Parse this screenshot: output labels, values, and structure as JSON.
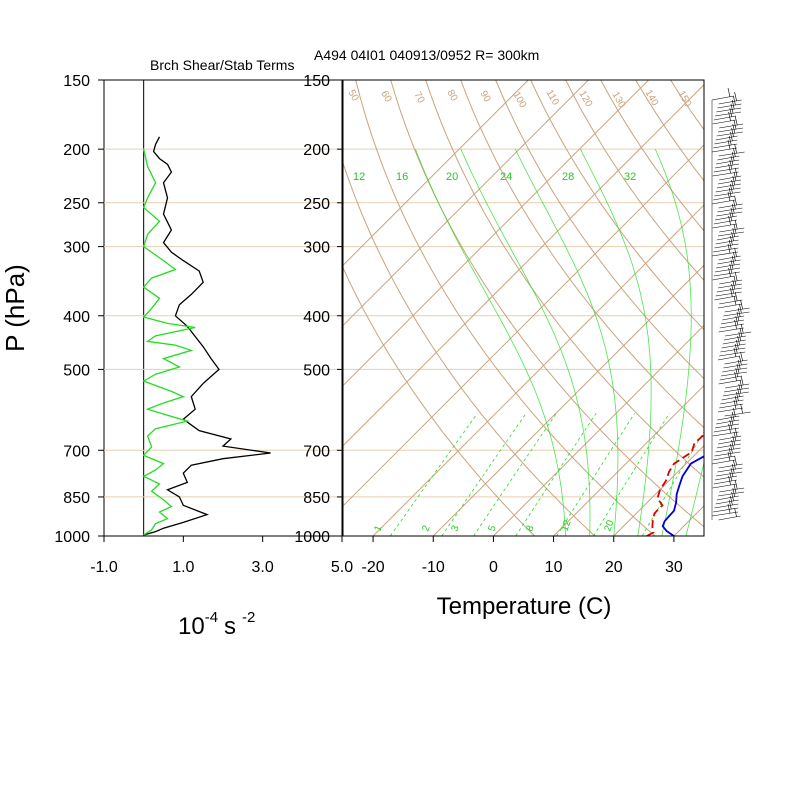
{
  "chart_data": [
    {
      "type": "line",
      "title": "Brch Shear/Stab Terms",
      "ylabel": "P (hPa)",
      "xlabel_base": "10",
      "xlabel_exp": "-4",
      "xlabel_unit": "s",
      "xlabel_unit_exp": "-2",
      "ylim": [
        1000,
        150
      ],
      "xlim": [
        -1.0,
        5.0
      ],
      "pressure_ticks": [
        150,
        200,
        250,
        300,
        400,
        500,
        700,
        850,
        1000
      ],
      "x_ticks": [
        "-1.0",
        "1.0",
        "3.0",
        "5.0"
      ],
      "x_tick_values": [
        -1,
        1,
        3,
        5
      ],
      "series": [
        {
          "color": "#000000",
          "points": [
            [
              0.4,
              190
            ],
            [
              0.3,
              196
            ],
            [
              0.25,
              202
            ],
            [
              0.4,
              208
            ],
            [
              0.6,
              213
            ],
            [
              0.7,
              220
            ],
            [
              0.5,
              230
            ],
            [
              0.6,
              245
            ],
            [
              0.5,
              262
            ],
            [
              0.7,
              280
            ],
            [
              0.5,
              295
            ],
            [
              0.7,
              307
            ],
            [
              1.0,
              318
            ],
            [
              1.4,
              332
            ],
            [
              1.5,
              348
            ],
            [
              1.2,
              366
            ],
            [
              0.9,
              382
            ],
            [
              0.8,
              400
            ],
            [
              1.1,
              418
            ],
            [
              1.3,
              436
            ],
            [
              1.5,
              455
            ],
            [
              1.7,
              478
            ],
            [
              1.9,
              500
            ],
            [
              1.5,
              530
            ],
            [
              1.2,
              560
            ],
            [
              1.3,
              590
            ],
            [
              1.0,
              615
            ],
            [
              1.4,
              645
            ],
            [
              2.2,
              668
            ],
            [
              2.0,
              688
            ],
            [
              3.2,
              708
            ],
            [
              2.0,
              725
            ],
            [
              1.2,
              745
            ],
            [
              1.0,
              770
            ],
            [
              1.1,
              800
            ],
            [
              0.6,
              825
            ],
            [
              0.9,
              850
            ],
            [
              1.0,
              880
            ],
            [
              1.6,
              915
            ],
            [
              1.0,
              945
            ],
            [
              0.5,
              968
            ],
            [
              0.3,
              982
            ],
            [
              0,
              996
            ]
          ]
        },
        {
          "color": "#22dd22",
          "points": [
            [
              0,
              200
            ],
            [
              0.1,
              215
            ],
            [
              0.3,
              230
            ],
            [
              0.1,
              245
            ],
            [
              0,
              255
            ],
            [
              0.4,
              270
            ],
            [
              0.1,
              285
            ],
            [
              0,
              300
            ],
            [
              0.5,
              318
            ],
            [
              0.8,
              330
            ],
            [
              0.2,
              342
            ],
            [
              0,
              355
            ],
            [
              0.4,
              372
            ],
            [
              0.2,
              388
            ],
            [
              0,
              402
            ],
            [
              0.6,
              413
            ],
            [
              1.3,
              420
            ],
            [
              0.3,
              435
            ],
            [
              0.1,
              445
            ],
            [
              0.8,
              452
            ],
            [
              1.2,
              462
            ],
            [
              0.5,
              478
            ],
            [
              0.9,
              495
            ],
            [
              0.3,
              510
            ],
            [
              0,
              525
            ],
            [
              0.7,
              548
            ],
            [
              1.0,
              560
            ],
            [
              0.5,
              575
            ],
            [
              0.1,
              590
            ],
            [
              0.6,
              605
            ],
            [
              1.1,
              620
            ],
            [
              0.3,
              640
            ],
            [
              0.1,
              660
            ],
            [
              0.2,
              690
            ],
            [
              0,
              715
            ],
            [
              0.5,
              740
            ],
            [
              0.3,
              760
            ],
            [
              0,
              780
            ],
            [
              0.4,
              805
            ],
            [
              0.2,
              830
            ],
            [
              0.5,
              860
            ],
            [
              0.7,
              885
            ],
            [
              0.4,
              905
            ],
            [
              0.6,
              930
            ],
            [
              0.3,
              950
            ],
            [
              0.2,
              975
            ],
            [
              0,
              996
            ]
          ]
        }
      ]
    },
    {
      "type": "line",
      "title": "A494 04I01 040913/0952 R= 300km",
      "xlabel": "Temperature (C)",
      "ylim": [
        1000,
        150
      ],
      "xlim": [
        -25,
        35
      ],
      "pressure_ticks": [
        150,
        200,
        250,
        300,
        400,
        500,
        700,
        850,
        1000
      ],
      "x_ticks": [
        -20,
        -10,
        0,
        10,
        20,
        30
      ],
      "isotherms": [
        -70,
        -60,
        -50,
        -40,
        -30,
        -20,
        -10,
        0,
        10,
        20,
        30
      ],
      "dry_adiabats_K": [
        280,
        290,
        300,
        310,
        320,
        330,
        340,
        350,
        360,
        370,
        380,
        390,
        400,
        410,
        420,
        430,
        440,
        450,
        460
      ],
      "moist_adiabats_C": [
        12,
        16,
        20,
        24,
        28,
        32
      ],
      "mixing_ratios": [
        1,
        2,
        3,
        5,
        8,
        12,
        20
      ],
      "adiabat_labels_top": [
        "50",
        "60",
        "70",
        "80",
        "90",
        "100",
        "110",
        "120",
        "130",
        "140",
        "150"
      ],
      "moist_labels": [
        "12",
        "16",
        "20",
        "24",
        "28",
        "32"
      ],
      "mixing_labels": [
        "1",
        "2",
        "3",
        "5",
        "8",
        "12",
        "20"
      ],
      "colors": {
        "thermo": "#c8a47e",
        "moist": "#22dd22",
        "temperature": "#0000dd",
        "dewpoint": "#dd0000"
      },
      "series": [
        {
          "color": "#0000dd",
          "style": "solid",
          "points": [
            [
              30,
              1000
            ],
            [
              28,
              980
            ],
            [
              26.5,
              960
            ],
            [
              26,
              940
            ],
            [
              25.8,
              900
            ],
            [
              24.8,
              870
            ],
            [
              23.5,
              840
            ],
            [
              22.5,
              810
            ],
            [
              21.5,
              780
            ],
            [
              20.8,
              740
            ],
            [
              22,
              712
            ],
            [
              23.5,
              702
            ],
            [
              23,
              680
            ],
            [
              22,
              650
            ],
            [
              21,
              620
            ],
            [
              20,
              590
            ],
            [
              19.3,
              560
            ],
            [
              18.5,
              530
            ],
            [
              18.5,
              500
            ],
            [
              17.8,
              470
            ],
            [
              17,
              440
            ],
            [
              16,
              410
            ],
            [
              13.5,
              380
            ],
            [
              12,
              355
            ],
            [
              11.5,
              330
            ],
            [
              10.8,
              310
            ],
            [
              9.8,
              290
            ],
            [
              8.3,
              270
            ],
            [
              6.8,
              250
            ],
            [
              5.5,
              235
            ],
            [
              3.8,
              220
            ],
            [
              2,
              205
            ],
            [
              0.5,
              195
            ],
            [
              -1,
              185
            ],
            [
              -2,
              178
            ]
          ]
        },
        {
          "color": "#dd0000",
          "style": "dashed",
          "points": [
            [
              25.5,
              1000
            ],
            [
              26,
              985
            ],
            [
              25,
              965
            ],
            [
              24,
              940
            ],
            [
              23,
              910
            ],
            [
              23,
              880
            ],
            [
              21,
              855
            ],
            [
              20,
              825
            ],
            [
              19.5,
              795
            ],
            [
              18.5,
              765
            ],
            [
              18,
              740
            ],
            [
              19,
              705
            ],
            [
              18,
              680
            ],
            [
              18.2,
              650
            ],
            [
              18.5,
              620
            ],
            [
              18.2,
              595
            ],
            [
              17.5,
              565
            ],
            [
              15.5,
              540
            ],
            [
              13,
              520
            ],
            [
              12.5,
              500
            ],
            [
              14,
              470
            ],
            [
              13.5,
              450
            ],
            [
              7,
              430
            ],
            [
              4,
              420
            ],
            [
              1,
              410
            ],
            [
              0.5,
              392
            ],
            [
              2,
              382
            ],
            [
              6,
              372
            ],
            [
              10,
              362
            ],
            [
              10.5,
              345
            ],
            [
              8,
              330
            ],
            [
              4.5,
              320
            ],
            [
              3.5,
              312
            ],
            [
              4,
              305
            ],
            [
              3,
              295
            ],
            [
              1,
              285
            ],
            [
              -2.5,
              270
            ],
            [
              -3,
              255
            ],
            [
              -3.5,
              240
            ],
            [
              -5,
              228
            ],
            [
              -7.5,
              218
            ],
            [
              -9.5,
              210
            ],
            [
              -10.5,
              205
            ]
          ]
        }
      ]
    }
  ]
}
